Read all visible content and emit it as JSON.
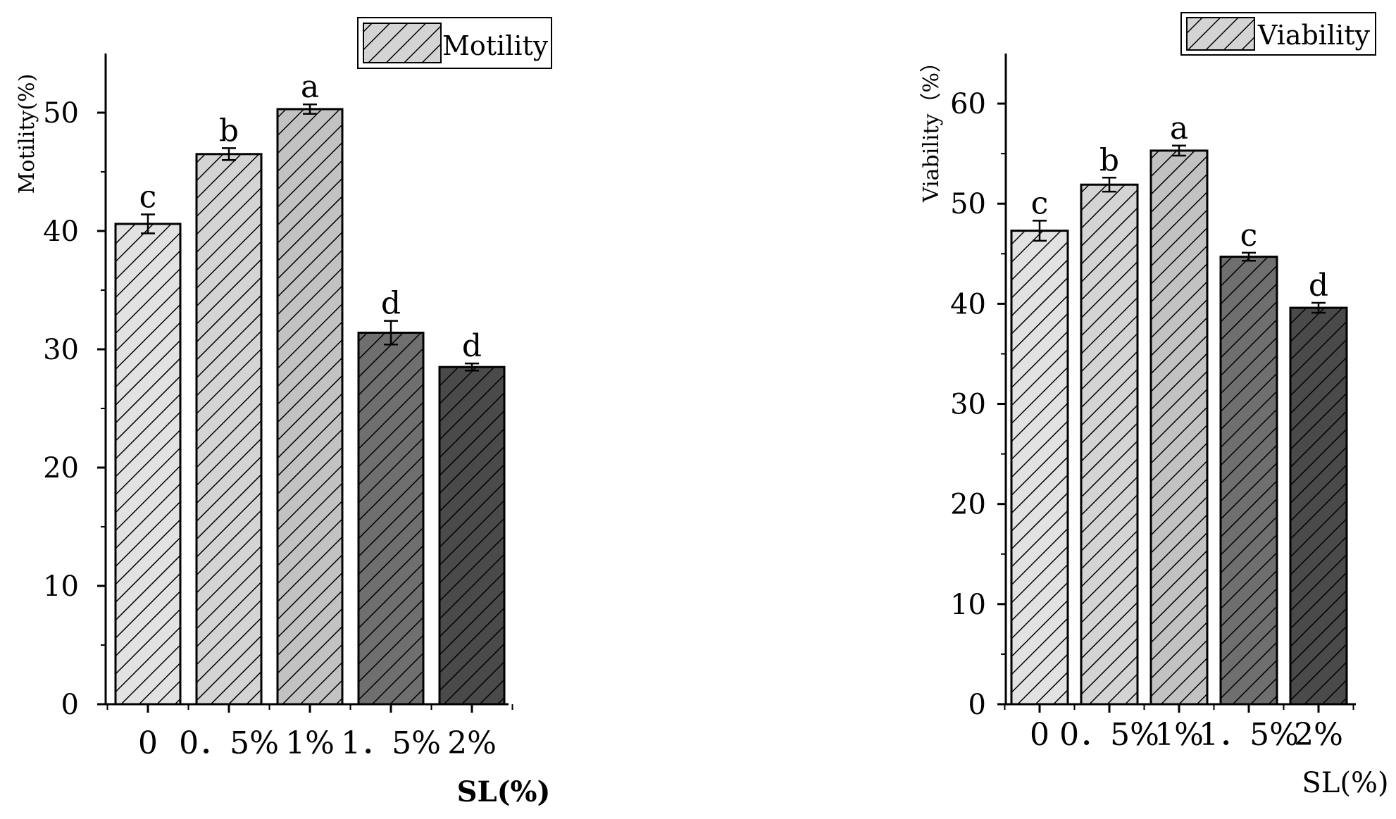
{
  "chart_data": [
    {
      "type": "bar",
      "title": "",
      "xlabel": "SL(%)",
      "ylabel": "Motility(%)",
      "ylim": [
        0,
        55
      ],
      "yticks": [
        0,
        10,
        20,
        30,
        40,
        50
      ],
      "categories": [
        "0",
        "0.5%",
        "1%",
        "1.5%",
        "2%"
      ],
      "category_display": [
        "0",
        "0．5%",
        "1%",
        "1．5%",
        "2%"
      ],
      "values": [
        40.6,
        46.5,
        50.3,
        31.4,
        28.5
      ],
      "errors": [
        0.8,
        0.5,
        0.4,
        1.0,
        0.3
      ],
      "significance": [
        "c",
        "b",
        "a",
        "d",
        "d"
      ],
      "legend": [
        "Motility"
      ],
      "legend_position": "top-right",
      "bar_fill_colors": [
        "#e2e2e2",
        "#d4d4d4",
        "#c2c2c2",
        "#6f6f6f",
        "#4a4a4a"
      ],
      "hatch": "diagonal"
    },
    {
      "type": "bar",
      "title": "",
      "xlabel": "SL(%)",
      "ylabel": "Viability（%）",
      "ylim": [
        0,
        65
      ],
      "yticks": [
        0,
        10,
        20,
        30,
        40,
        50,
        60
      ],
      "categories": [
        "0",
        "0.5%",
        "1%",
        "1.5%",
        "2%"
      ],
      "category_display": [
        "0",
        "0．5%",
        "1%",
        "1．5%",
        "2%"
      ],
      "values": [
        47.3,
        51.9,
        55.3,
        44.7,
        39.6
      ],
      "errors": [
        1.0,
        0.7,
        0.5,
        0.4,
        0.5
      ],
      "significance": [
        "c",
        "b",
        "a",
        "c",
        "d"
      ],
      "legend": [
        "Viability"
      ],
      "legend_position": "top-right",
      "bar_fill_colors": [
        "#e2e2e2",
        "#d4d4d4",
        "#c2c2c2",
        "#6f6f6f",
        "#4a4a4a"
      ],
      "hatch": "diagonal"
    }
  ]
}
